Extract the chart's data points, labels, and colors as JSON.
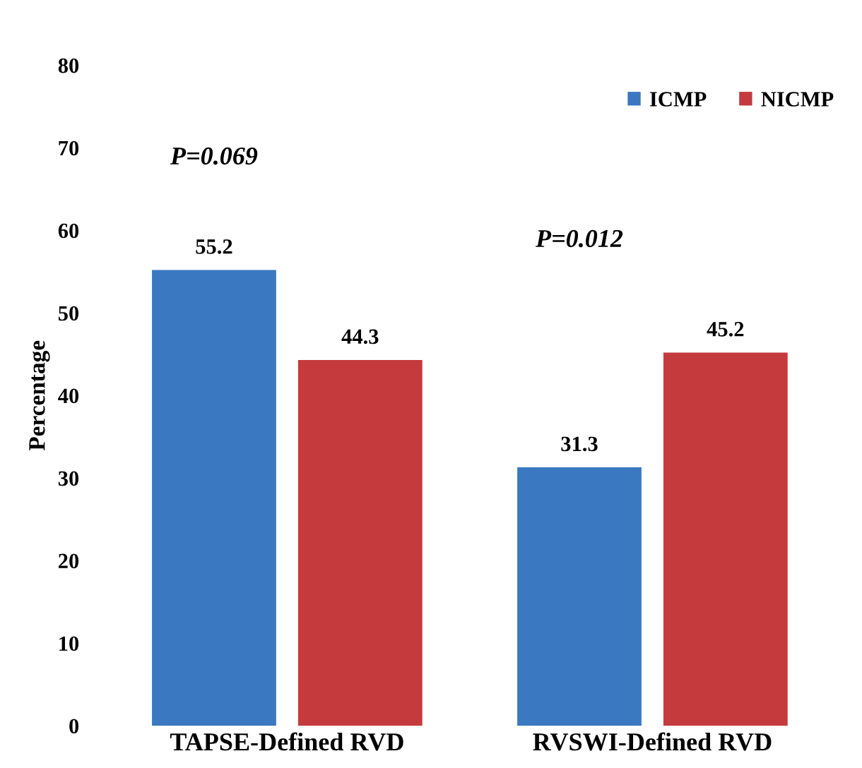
{
  "chart_data": {
    "type": "bar",
    "ylabel": "Percentage",
    "categories": [
      "TAPSE-Defined RVD",
      "RVSWI-Defined RVD"
    ],
    "series": [
      {
        "name": "ICMP",
        "color": "#3a78c2",
        "values": [
          55.2,
          31.3
        ]
      },
      {
        "name": "NICMP",
        "color": "#c53a3d",
        "values": [
          44.3,
          45.2
        ]
      }
    ],
    "ylim": [
      0,
      80
    ],
    "yticks": [
      0,
      10,
      20,
      30,
      40,
      50,
      60,
      70,
      80
    ],
    "data_labels": true,
    "legend": "top right",
    "grid": false,
    "annotations": [
      "P=0.069",
      "P=0.012"
    ]
  }
}
